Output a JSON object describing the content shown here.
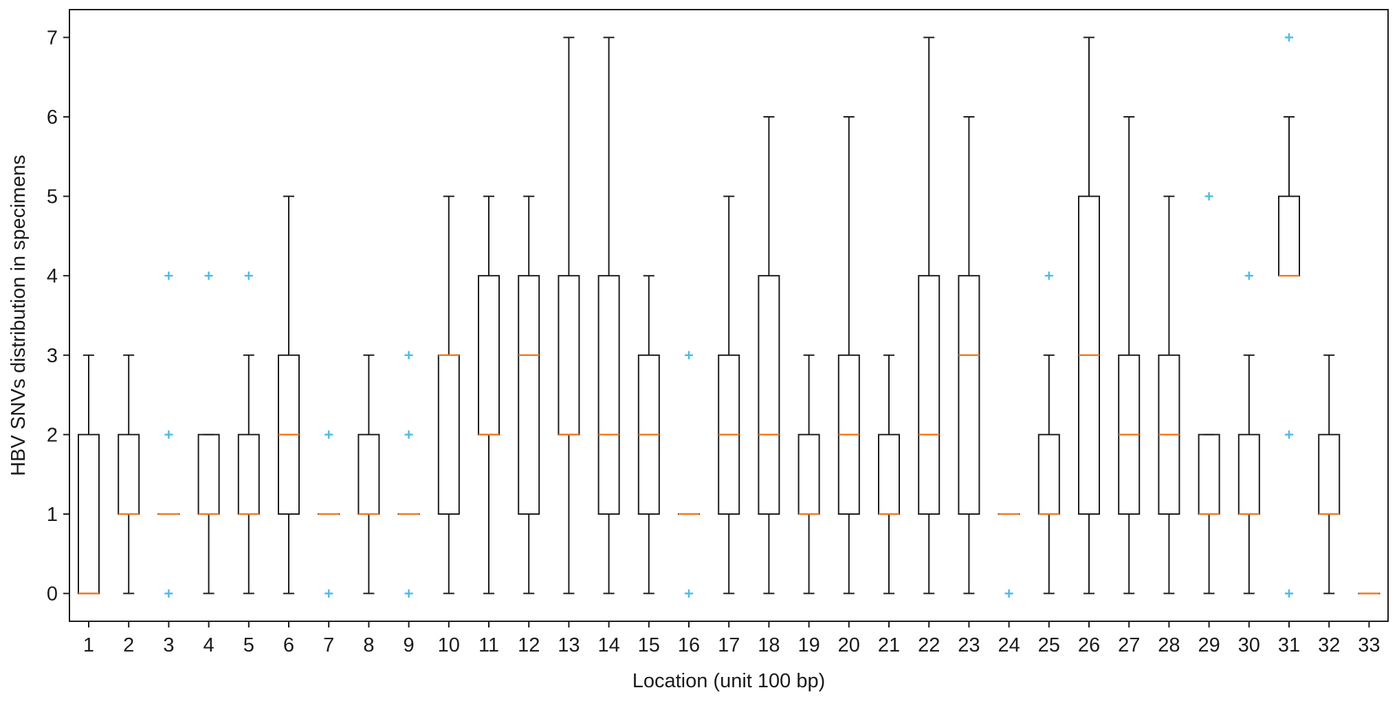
{
  "chart_data": {
    "type": "box",
    "title": "",
    "xlabel": "Location (unit 100 bp)",
    "ylabel": "HBV SNVs distribution in specimens",
    "ylim": [
      -0.35,
      7.35
    ],
    "yticks": [
      0,
      1,
      2,
      3,
      4,
      5,
      6,
      7
    ],
    "grid": false,
    "legend": "none",
    "colors": {
      "box": "#1a1a1a",
      "median": "#f07b20",
      "outlier": "#4dbbe8"
    },
    "categories": [
      "1",
      "2",
      "3",
      "4",
      "5",
      "6",
      "7",
      "8",
      "9",
      "10",
      "11",
      "12",
      "13",
      "14",
      "15",
      "16",
      "17",
      "18",
      "19",
      "20",
      "21",
      "22",
      "23",
      "24",
      "25",
      "26",
      "27",
      "28",
      "29",
      "30",
      "31",
      "32",
      "33"
    ],
    "boxes": [
      {
        "label": "1",
        "whislo": 0,
        "q1": 0,
        "med": 0,
        "q3": 2,
        "whishi": 3,
        "fliers": []
      },
      {
        "label": "2",
        "whislo": 0,
        "q1": 1,
        "med": 1,
        "q3": 2,
        "whishi": 3,
        "fliers": []
      },
      {
        "label": "3",
        "whislo": 1,
        "q1": 1,
        "med": 1,
        "q3": 1,
        "whishi": 1,
        "fliers": [
          0,
          2,
          4
        ]
      },
      {
        "label": "4",
        "whislo": 0,
        "q1": 1,
        "med": 1,
        "q3": 2,
        "whishi": 2,
        "fliers": [
          4
        ]
      },
      {
        "label": "5",
        "whislo": 0,
        "q1": 1,
        "med": 1,
        "q3": 2,
        "whishi": 3,
        "fliers": [
          4
        ]
      },
      {
        "label": "6",
        "whislo": 0,
        "q1": 1,
        "med": 2,
        "q3": 3,
        "whishi": 5,
        "fliers": []
      },
      {
        "label": "7",
        "whislo": 1,
        "q1": 1,
        "med": 1,
        "q3": 1,
        "whishi": 1,
        "fliers": [
          0,
          2
        ]
      },
      {
        "label": "8",
        "whislo": 0,
        "q1": 1,
        "med": 1,
        "q3": 2,
        "whishi": 3,
        "fliers": []
      },
      {
        "label": "9",
        "whislo": 1,
        "q1": 1,
        "med": 1,
        "q3": 1,
        "whishi": 1,
        "fliers": [
          0,
          2,
          3
        ]
      },
      {
        "label": "10",
        "whislo": 0,
        "q1": 1,
        "med": 3,
        "q3": 3,
        "whishi": 5,
        "fliers": []
      },
      {
        "label": "11",
        "whislo": 0,
        "q1": 2,
        "med": 2,
        "q3": 4,
        "whishi": 5,
        "fliers": []
      },
      {
        "label": "12",
        "whislo": 0,
        "q1": 1,
        "med": 3,
        "q3": 4,
        "whishi": 5,
        "fliers": []
      },
      {
        "label": "13",
        "whislo": 0,
        "q1": 2,
        "med": 2,
        "q3": 4,
        "whishi": 7,
        "fliers": []
      },
      {
        "label": "14",
        "whislo": 0,
        "q1": 1,
        "med": 2,
        "q3": 4,
        "whishi": 7,
        "fliers": []
      },
      {
        "label": "15",
        "whislo": 0,
        "q1": 1,
        "med": 2,
        "q3": 3,
        "whishi": 4,
        "fliers": []
      },
      {
        "label": "16",
        "whislo": 1,
        "q1": 1,
        "med": 1,
        "q3": 1,
        "whishi": 1,
        "fliers": [
          0,
          3
        ]
      },
      {
        "label": "17",
        "whislo": 0,
        "q1": 1,
        "med": 2,
        "q3": 3,
        "whishi": 5,
        "fliers": []
      },
      {
        "label": "18",
        "whislo": 0,
        "q1": 1,
        "med": 2,
        "q3": 4,
        "whishi": 6,
        "fliers": []
      },
      {
        "label": "19",
        "whislo": 0,
        "q1": 1,
        "med": 1,
        "q3": 2,
        "whishi": 3,
        "fliers": []
      },
      {
        "label": "20",
        "whislo": 0,
        "q1": 1,
        "med": 2,
        "q3": 3,
        "whishi": 6,
        "fliers": []
      },
      {
        "label": "21",
        "whislo": 0,
        "q1": 1,
        "med": 1,
        "q3": 2,
        "whishi": 3,
        "fliers": []
      },
      {
        "label": "22",
        "whislo": 0,
        "q1": 1,
        "med": 2,
        "q3": 4,
        "whishi": 7,
        "fliers": []
      },
      {
        "label": "23",
        "whislo": 0,
        "q1": 1,
        "med": 3,
        "q3": 4,
        "whishi": 6,
        "fliers": []
      },
      {
        "label": "24",
        "whislo": 1,
        "q1": 1,
        "med": 1,
        "q3": 1,
        "whishi": 1,
        "fliers": [
          0
        ]
      },
      {
        "label": "25",
        "whislo": 0,
        "q1": 1,
        "med": 1,
        "q3": 2,
        "whishi": 3,
        "fliers": [
          4
        ]
      },
      {
        "label": "26",
        "whislo": 0,
        "q1": 1,
        "med": 3,
        "q3": 5,
        "whishi": 7,
        "fliers": []
      },
      {
        "label": "27",
        "whislo": 0,
        "q1": 1,
        "med": 2,
        "q3": 3,
        "whishi": 6,
        "fliers": []
      },
      {
        "label": "28",
        "whislo": 0,
        "q1": 1,
        "med": 2,
        "q3": 3,
        "whishi": 5,
        "fliers": []
      },
      {
        "label": "29",
        "whislo": 0,
        "q1": 1,
        "med": 1,
        "q3": 2,
        "whishi": 2,
        "fliers": [
          5
        ]
      },
      {
        "label": "30",
        "whislo": 0,
        "q1": 1,
        "med": 1,
        "q3": 2,
        "whishi": 3,
        "fliers": [
          4
        ]
      },
      {
        "label": "31",
        "whislo": 4,
        "q1": 4,
        "med": 4,
        "q3": 5,
        "whishi": 6,
        "fliers": [
          0,
          2,
          7
        ]
      },
      {
        "label": "32",
        "whislo": 0,
        "q1": 1,
        "med": 1,
        "q3": 2,
        "whishi": 3,
        "fliers": []
      },
      {
        "label": "33",
        "whislo": 0,
        "q1": 0,
        "med": 0,
        "q3": 0,
        "whishi": 0,
        "fliers": []
      }
    ]
  }
}
